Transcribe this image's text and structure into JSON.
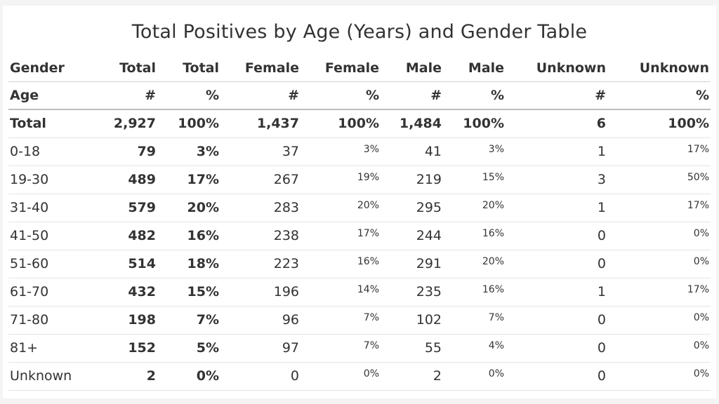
{
  "chart_data": {
    "type": "table",
    "title": "Total Positives by Age (Years) and Gender Table",
    "header_row1": [
      "Gender",
      "Total",
      "Total",
      "Female",
      "Female",
      "Male",
      "Male",
      "Unknown",
      "Unknown"
    ],
    "header_row2": [
      "Age",
      "#",
      "%",
      "#",
      "%",
      "#",
      "%",
      "#",
      "%"
    ],
    "rows": [
      [
        "Total",
        "2,927",
        "100%",
        "1,437",
        "100%",
        "1,484",
        "100%",
        "6",
        "100%"
      ],
      [
        "0-18",
        "79",
        "3%",
        "37",
        "3%",
        "41",
        "3%",
        "1",
        "17%"
      ],
      [
        "19-30",
        "489",
        "17%",
        "267",
        "19%",
        "219",
        "15%",
        "3",
        "50%"
      ],
      [
        "31-40",
        "579",
        "20%",
        "283",
        "20%",
        "295",
        "20%",
        "1",
        "17%"
      ],
      [
        "41-50",
        "482",
        "16%",
        "238",
        "17%",
        "244",
        "16%",
        "0",
        "0%"
      ],
      [
        "51-60",
        "514",
        "18%",
        "223",
        "16%",
        "291",
        "20%",
        "0",
        "0%"
      ],
      [
        "61-70",
        "432",
        "15%",
        "196",
        "14%",
        "235",
        "16%",
        "1",
        "17%"
      ],
      [
        "71-80",
        "198",
        "7%",
        "96",
        "7%",
        "102",
        "7%",
        "0",
        "0%"
      ],
      [
        "81+",
        "152",
        "5%",
        "97",
        "7%",
        "55",
        "4%",
        "0",
        "0%"
      ],
      [
        "Unknown",
        "2",
        "0%",
        "0",
        "0%",
        "2",
        "0%",
        "0",
        "0%"
      ]
    ]
  }
}
